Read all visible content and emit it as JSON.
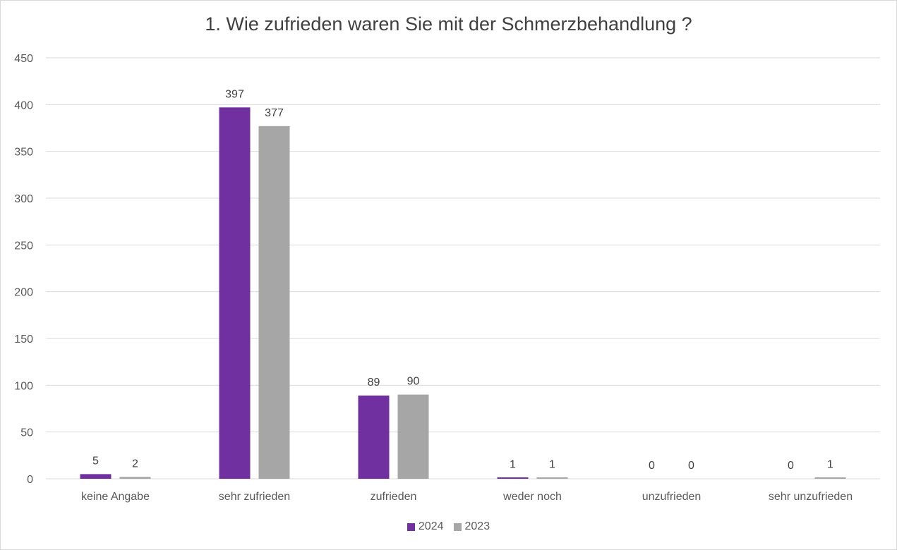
{
  "chart_data": {
    "type": "bar",
    "title": "1. Wie zufrieden waren Sie mit der Schmerzbehandlung ?",
    "xlabel": "",
    "ylabel": "",
    "categories": [
      "keine Angabe",
      "sehr zufrieden",
      "zufrieden",
      "weder noch",
      "unzufrieden",
      "sehr unzufrieden"
    ],
    "series": [
      {
        "name": "2024",
        "color": "#7030a0",
        "values": [
          5,
          397,
          89,
          1,
          0,
          0
        ]
      },
      {
        "name": "2023",
        "color": "#a6a6a6",
        "values": [
          2,
          377,
          90,
          1,
          0,
          1
        ]
      }
    ],
    "ylim": [
      0,
      450
    ],
    "yticks": [
      0,
      50,
      100,
      150,
      200,
      250,
      300,
      350,
      400,
      450
    ],
    "grid": true,
    "legend_position": "bottom"
  }
}
